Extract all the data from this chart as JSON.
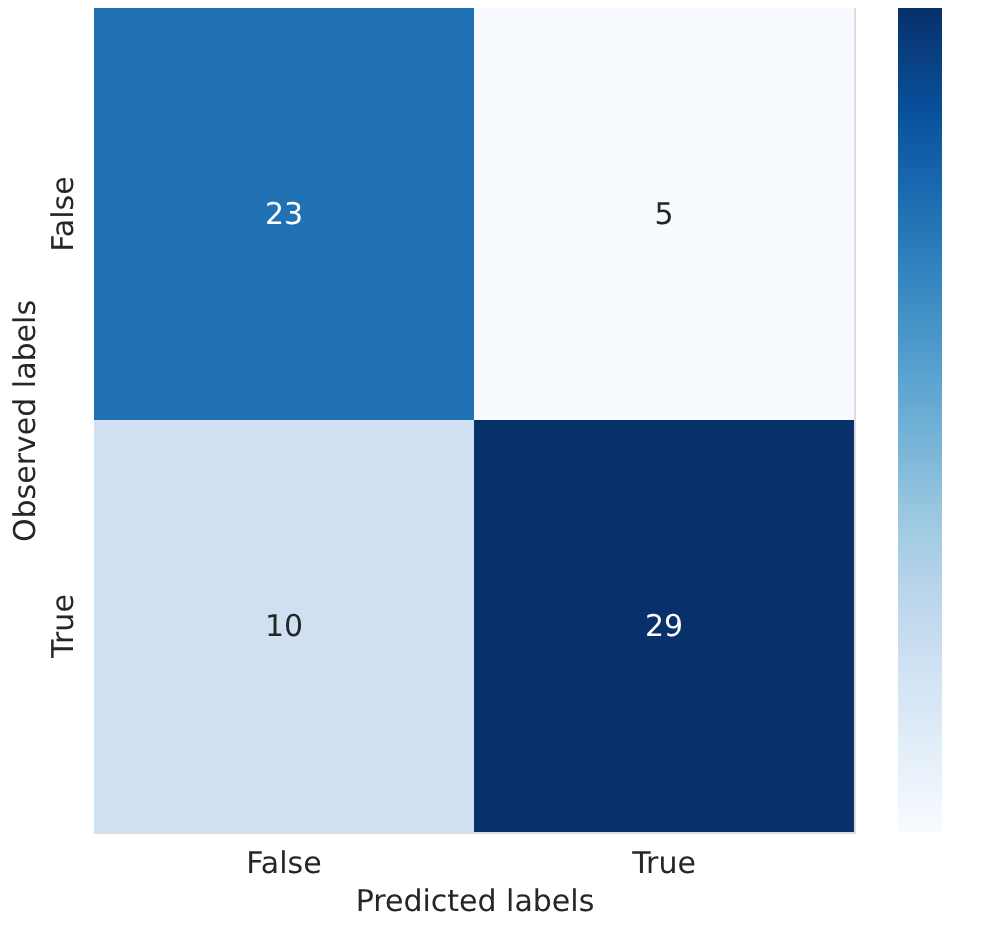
{
  "chart_data": {
    "type": "heatmap",
    "xlabel": "Predicted labels",
    "ylabel": "Observed labels",
    "categories": [
      "False",
      "True"
    ],
    "y_categories": [
      "False",
      "True"
    ],
    "cells": [
      [
        23,
        5
      ],
      [
        10,
        29
      ]
    ],
    "data_labels": true,
    "grid": false
  }
}
